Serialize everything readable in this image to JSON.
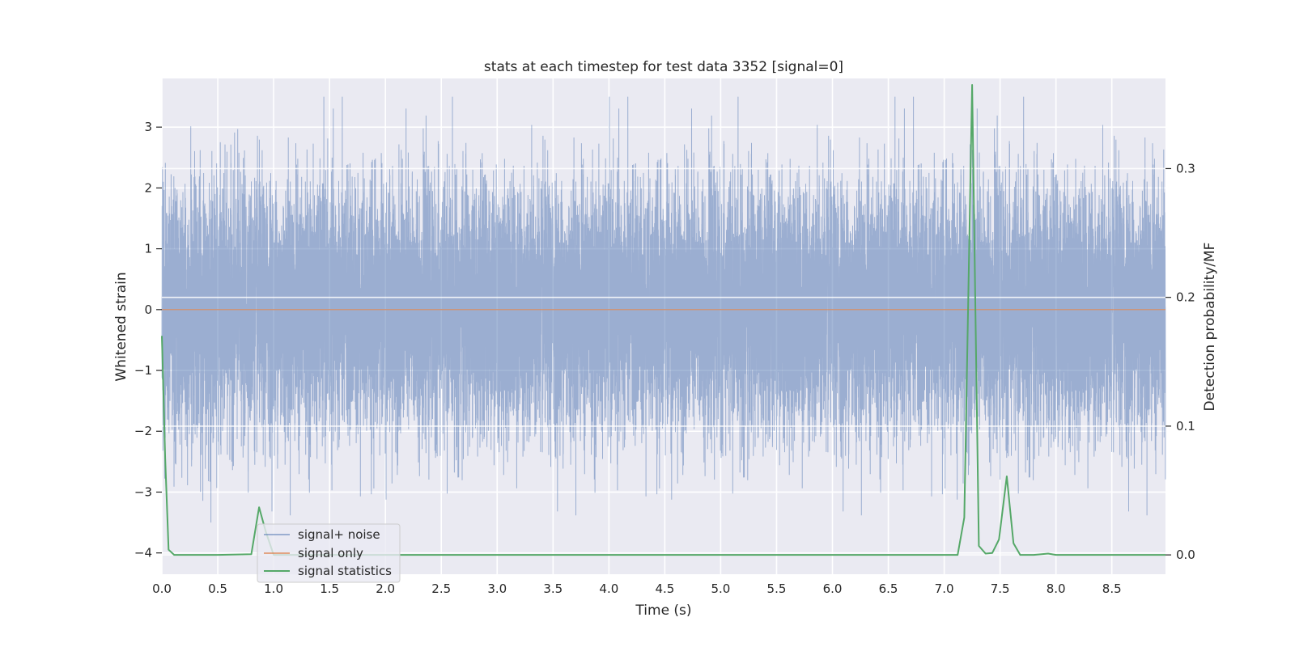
{
  "chart_data": {
    "type": "line",
    "title": "stats at each timestep for test data 3352 [signal=0]",
    "xlabel": "Time (s)",
    "ylabel": "Whitened strain",
    "ylabel_right": "Detection probability/MF",
    "xlim": [
      0.0,
      8.98
    ],
    "ylim": [
      -4.35,
      3.8
    ],
    "ylim_right": [
      -0.015,
      0.37
    ],
    "x_ticks": [
      0.0,
      0.5,
      1.0,
      1.5,
      2.0,
      2.5,
      3.0,
      3.5,
      4.0,
      4.5,
      5.0,
      5.5,
      6.0,
      6.5,
      7.0,
      7.5,
      8.0,
      8.5
    ],
    "x_tick_labels": [
      "0.0",
      "0.5",
      "1.0",
      "1.5",
      "2.0",
      "2.5",
      "3.0",
      "3.5",
      "4.0",
      "4.5",
      "5.0",
      "5.5",
      "6.0",
      "6.5",
      "7.0",
      "7.5",
      "8.0",
      "8.5"
    ],
    "y_ticks": [
      -4,
      -3,
      -2,
      -1,
      0,
      1,
      2,
      3
    ],
    "y_tick_labels": [
      "−4",
      "−3",
      "−2",
      "−1",
      "0",
      "1",
      "2",
      "3"
    ],
    "y_ticks_right": [
      0.0,
      0.1,
      0.2,
      0.3
    ],
    "y_tick_labels_right": [
      "0.0",
      "0.1",
      "0.2",
      "0.3"
    ],
    "grid": true,
    "legend_position": "lower-left",
    "series": [
      {
        "name": "signal+ noise",
        "axis": "left",
        "color": "#4c72b0",
        "alpha": 0.5,
        "sample_rate_hz": 2048,
        "value_range": [
          -3.5,
          3.5
        ],
        "noise": "whitened gaussian, std approx 1"
      },
      {
        "name": "signal only",
        "axis": "left",
        "color": "#dd8452",
        "x": [
          0.0,
          8.98
        ],
        "y": [
          0.0,
          0.0
        ]
      },
      {
        "name": "signal statistics",
        "axis": "right",
        "color": "#55a868",
        "x": [
          0.0,
          0.03,
          0.06,
          0.11,
          0.17,
          0.5,
          0.8,
          0.87,
          0.93,
          1.0,
          1.5,
          2.0,
          3.0,
          4.0,
          5.0,
          6.0,
          7.0,
          7.12,
          7.18,
          7.25,
          7.31,
          7.37,
          7.43,
          7.49,
          7.56,
          7.62,
          7.68,
          7.74,
          7.8,
          7.93,
          8.0,
          8.5,
          8.98
        ],
        "y": [
          0.17,
          0.075,
          0.004,
          0.0,
          0.0,
          0.0,
          0.0005,
          0.037,
          0.018,
          0.0,
          0.0,
          0.0,
          0.0,
          0.0,
          0.0,
          0.0,
          0.0,
          0.0,
          0.029,
          0.365,
          0.007,
          0.001,
          0.0015,
          0.012,
          0.061,
          0.009,
          0.0,
          0.0,
          0.0,
          0.001,
          0.0,
          0.0,
          0.0
        ]
      }
    ]
  }
}
